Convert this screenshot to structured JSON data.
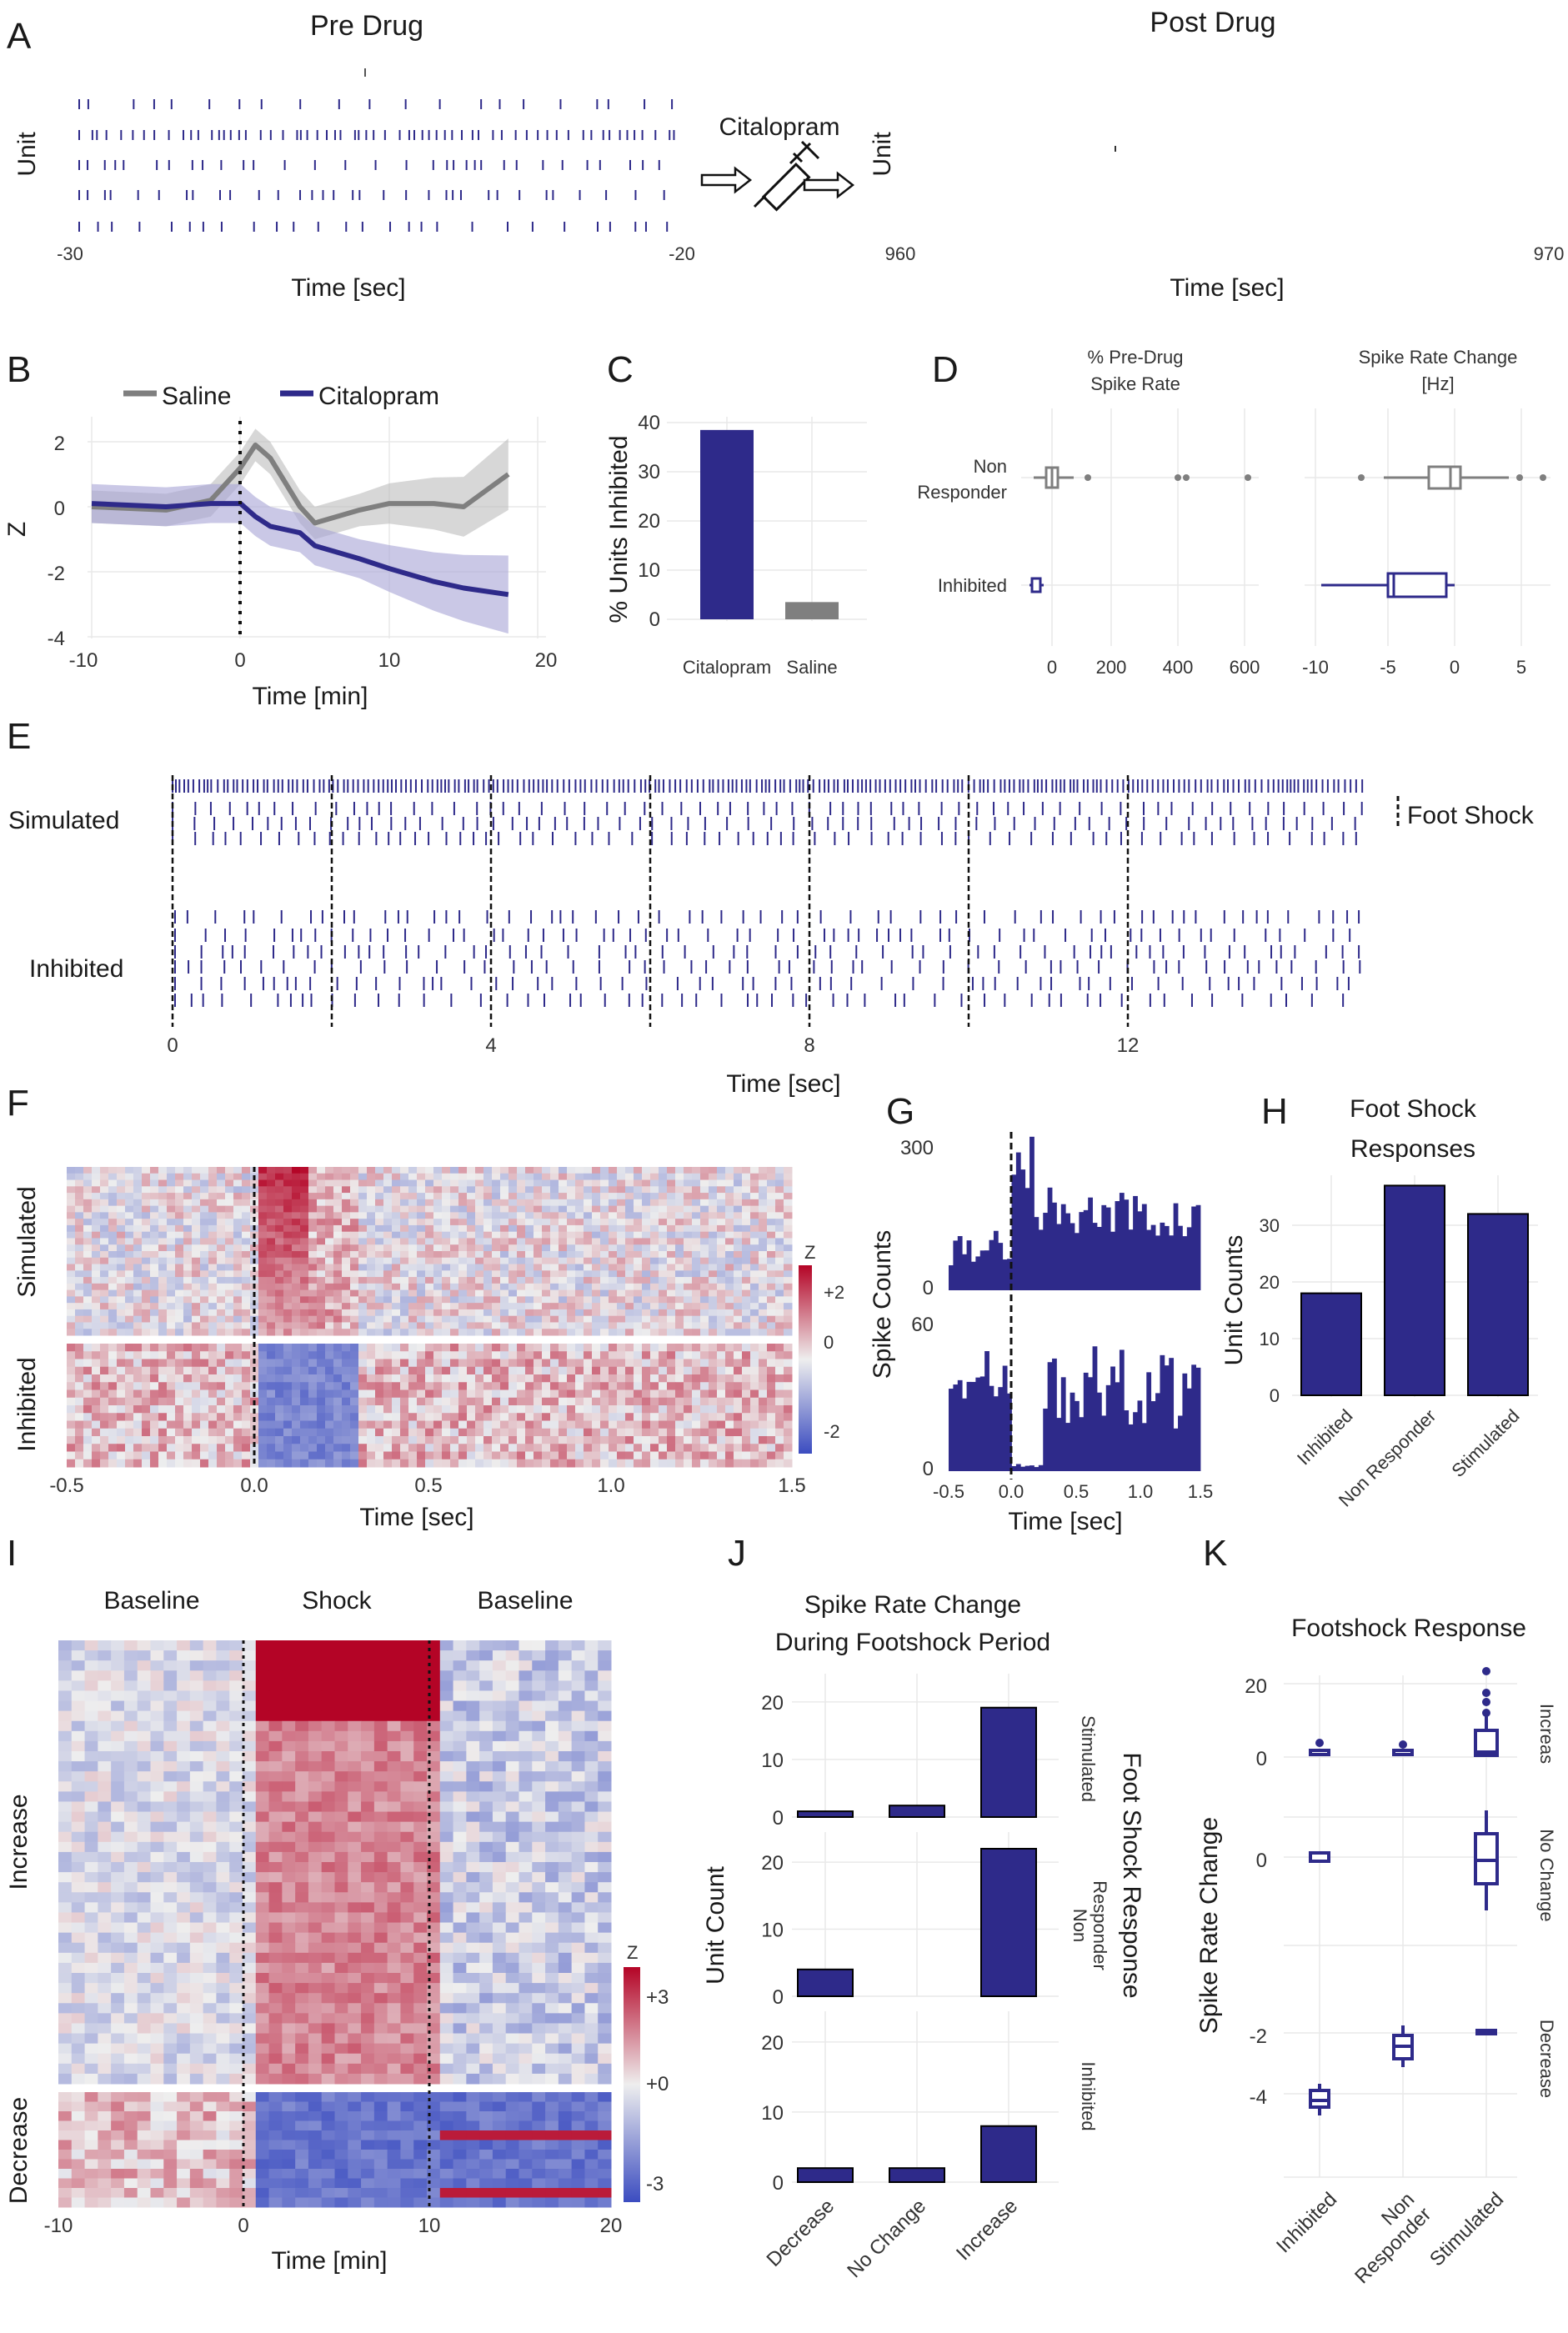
{
  "colors": {
    "citalopram": "#2e2a8a",
    "saline": "#7f7f7f",
    "bar": "#2e2a8a",
    "heat_high": "#b40426",
    "heat_mid": "#eeeeee",
    "heat_low": "#3b4cc0"
  },
  "panelA": {
    "letter": "A",
    "pre_title": "Pre Drug",
    "post_title": "Post Drug",
    "ylabel": "Unit",
    "xlabel": "Time [sec]",
    "pre_ticks": [
      "-30",
      "-20"
    ],
    "post_ticks": [
      "960",
      "970"
    ],
    "drug_label": "Citalopram"
  },
  "panelB": {
    "letter": "B",
    "legend": [
      "Saline",
      "Citalopram"
    ],
    "ylabel": "Z",
    "xlabel": "Time [min]",
    "xticks": [
      "-10",
      "0",
      "10",
      "20"
    ],
    "yticks": [
      "2",
      "0",
      "-2",
      "-4"
    ]
  },
  "panelC": {
    "letter": "C",
    "ylabel": "% Units Inhibited",
    "yticks": [
      "40",
      "30",
      "20",
      "10",
      "0"
    ],
    "categories": [
      "Citalopram",
      "Saline"
    ]
  },
  "panelD": {
    "letter": "D",
    "left_title_1": "% Pre-Drug",
    "left_title_2": "Spike Rate",
    "right_title_1": "Spike Rate Change",
    "right_title_2": "[Hz]",
    "row1_a": "Non",
    "row1_b": "Responder",
    "row2": "Inhibited",
    "left_ticks": [
      "0",
      "200",
      "400",
      "600"
    ],
    "right_ticks": [
      "-10",
      "-5",
      "0",
      "5"
    ]
  },
  "panelE": {
    "letter": "E",
    "row1": "Simulated",
    "row2": "Inhibited",
    "legend": "Foot Shock",
    "xlabel": "Time [sec]",
    "xticks": [
      "0",
      "4",
      "8",
      "12"
    ]
  },
  "panelF": {
    "letter": "F",
    "row1": "Simulated",
    "row2": "Inhibited",
    "xlabel": "Time [sec]",
    "xticks": [
      "-0.5",
      "0.0",
      "0.5",
      "1.0",
      "1.5"
    ],
    "cbar_title": "Z",
    "cbar_ticks": [
      "+2",
      "0",
      "-2"
    ]
  },
  "panelG": {
    "letter": "G",
    "ylabel": "Spike Counts",
    "top_ticks": [
      "300",
      "0"
    ],
    "bottom_ticks": [
      "60",
      "0"
    ],
    "xlabel": "Time [sec]",
    "xticks": [
      "-0.5",
      "0.0",
      "0.5",
      "1.0",
      "1.5"
    ]
  },
  "panelH": {
    "letter": "H",
    "title_1": "Foot Shock",
    "title_2": "Responses",
    "ylabel": "Unit Counts",
    "yticks": [
      "30",
      "20",
      "10",
      "0"
    ],
    "categories": [
      "Inhibited",
      "Non Responder",
      "Stimulated"
    ]
  },
  "panelI": {
    "letter": "I",
    "seg1": "Baseline",
    "seg2": "Shock",
    "seg3": "Baseline",
    "row1": "Increase",
    "row2": "Decrease",
    "xlabel": "Time [min]",
    "xticks": [
      "-10",
      "0",
      "10",
      "20"
    ],
    "cbar_title": "Z",
    "cbar_ticks": [
      "+3",
      "+0",
      "-3"
    ]
  },
  "panelJ": {
    "letter": "J",
    "title_1": "Spike Rate Change",
    "title_2": "During Footshock Period",
    "ylabel": "Unit Count",
    "facet_title": "Foot Shock Response",
    "facets": [
      "Stimulated",
      "Non",
      "Responder",
      "Inhibited"
    ],
    "yticks": [
      "20",
      "10",
      "0"
    ],
    "categories": [
      "Decrease",
      "No Change",
      "Increase"
    ]
  },
  "panelK": {
    "letter": "K",
    "title": "Footshock Response",
    "ylabel": "Spike Rate Change",
    "facets": [
      "Increas",
      "No Change",
      "Decrease"
    ],
    "row1_ticks": [
      "20",
      "0"
    ],
    "row2_ticks": [
      "0"
    ],
    "row3_ticks": [
      "-2",
      "-4"
    ],
    "cat1": "Inhibited",
    "cat2a": "Non",
    "cat2b": "Responder",
    "cat3": "Stimulated"
  },
  "chart_data": [
    {
      "panel": "B",
      "type": "line",
      "x": [
        -10,
        -5,
        -2,
        0,
        1,
        2,
        4,
        5,
        8,
        10,
        13,
        15,
        18
      ],
      "series": [
        {
          "name": "Saline",
          "values": [
            0.0,
            -0.1,
            0.2,
            1.2,
            1.9,
            1.5,
            0.0,
            -0.5,
            -0.1,
            0.1,
            0.1,
            0.0,
            1.0
          ]
        },
        {
          "name": "Citalopram",
          "values": [
            0.1,
            0.0,
            0.1,
            0.1,
            -0.3,
            -0.6,
            -0.8,
            -1.2,
            -1.6,
            -1.9,
            -2.3,
            -2.5,
            -2.7
          ]
        }
      ],
      "xlim": [
        -10,
        20
      ],
      "ylim": [
        -4,
        2.5
      ]
    },
    {
      "panel": "C",
      "type": "bar",
      "categories": [
        "Citalopram",
        "Saline"
      ],
      "values": [
        38.5,
        3.5
      ],
      "ylim": [
        0,
        40
      ]
    },
    {
      "panel": "H",
      "type": "bar",
      "categories": [
        "Inhibited",
        "Non Responder",
        "Stimulated"
      ],
      "values": [
        18,
        37,
        32
      ],
      "ylim": [
        0,
        37
      ]
    },
    {
      "panel": "J",
      "type": "bar",
      "categories": [
        "Decrease",
        "No Change",
        "Increase"
      ],
      "series": [
        {
          "name": "Stimulated",
          "values": [
            1,
            2,
            19
          ]
        },
        {
          "name": "Non Responder",
          "values": [
            4,
            0,
            22
          ]
        },
        {
          "name": "Inhibited",
          "values": [
            2,
            2,
            8
          ]
        }
      ]
    },
    {
      "panel": "D",
      "type": "scatter",
      "series": [
        {
          "name": "Non Responder",
          "values": [
            0,
            100,
            380,
            400,
            600,
            -8,
            -3,
            0,
            5,
            7
          ]
        },
        {
          "name": "Inhibited",
          "values": [
            -30,
            -5,
            -2
          ]
        }
      ]
    }
  ]
}
